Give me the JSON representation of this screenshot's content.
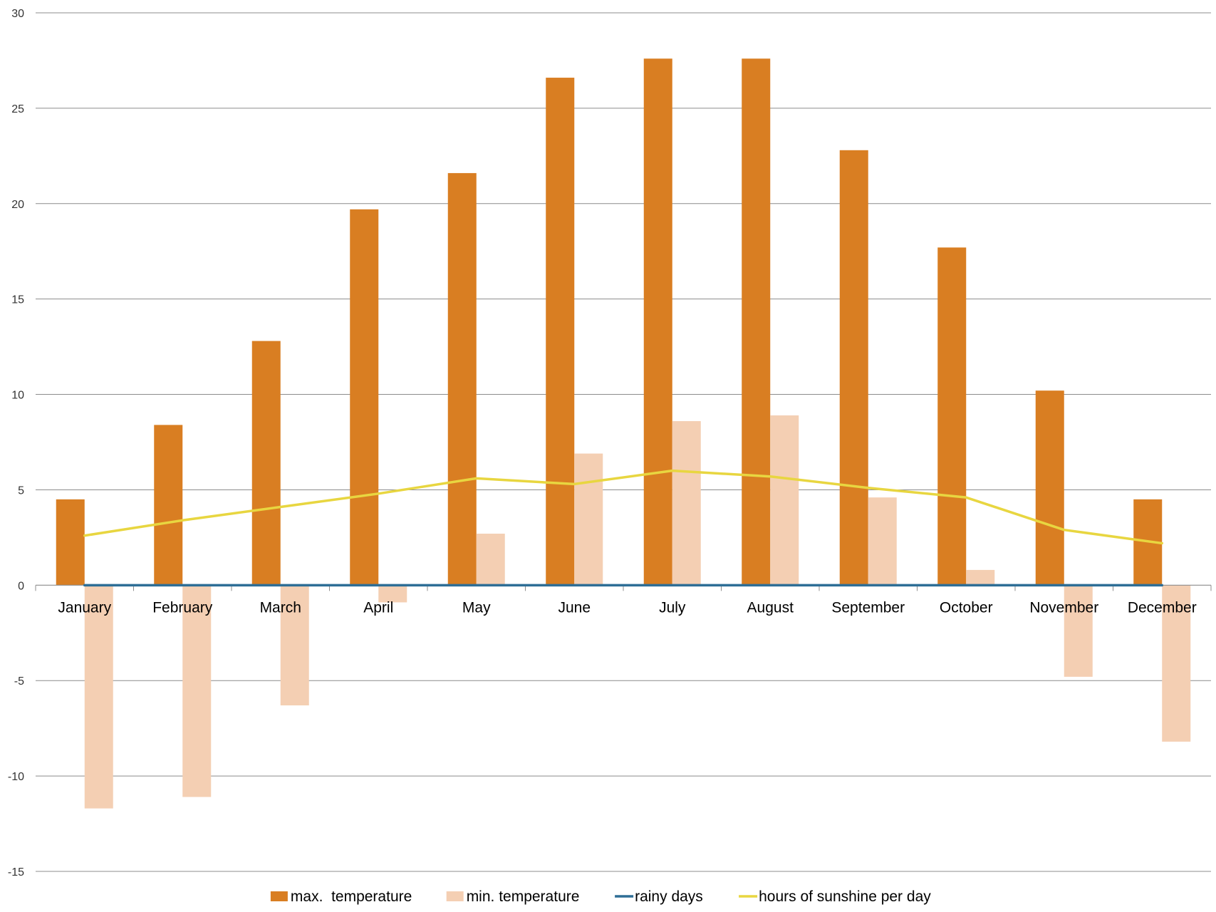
{
  "chart_data": {
    "type": "bar",
    "categories": [
      "January",
      "February",
      "March",
      "April",
      "May",
      "June",
      "July",
      "August",
      "September",
      "October",
      "November",
      "December"
    ],
    "ylim": [
      -15,
      30
    ],
    "yticks": [
      30,
      25,
      20,
      15,
      10,
      5,
      0,
      -5,
      -10,
      -15
    ],
    "grid": true,
    "legend_position": "bottom",
    "series": [
      {
        "name": "max.  temperature",
        "type": "bar",
        "color": "#D97E22",
        "values": [
          4.5,
          8.4,
          12.8,
          19.7,
          21.6,
          26.6,
          27.6,
          27.6,
          22.8,
          17.7,
          10.2,
          4.5
        ]
      },
      {
        "name": "min. temperature",
        "type": "bar",
        "color": "#F4CFB3",
        "values": [
          -11.7,
          -11.1,
          -6.3,
          -0.9,
          2.7,
          6.9,
          8.6,
          8.9,
          4.6,
          0.8,
          -4.8,
          -8.2
        ]
      },
      {
        "name": "rainy days",
        "type": "line",
        "color": "#2E6E96",
        "values": [
          0,
          0,
          0,
          0,
          0,
          0,
          0,
          0,
          0,
          0,
          0,
          0
        ]
      },
      {
        "name": "hours of sunshine per day",
        "type": "line",
        "color": "#E8D640",
        "values": [
          2.6,
          3.4,
          4.1,
          4.8,
          5.6,
          5.3,
          6.0,
          5.7,
          5.1,
          4.6,
          2.9,
          2.2
        ]
      }
    ]
  }
}
